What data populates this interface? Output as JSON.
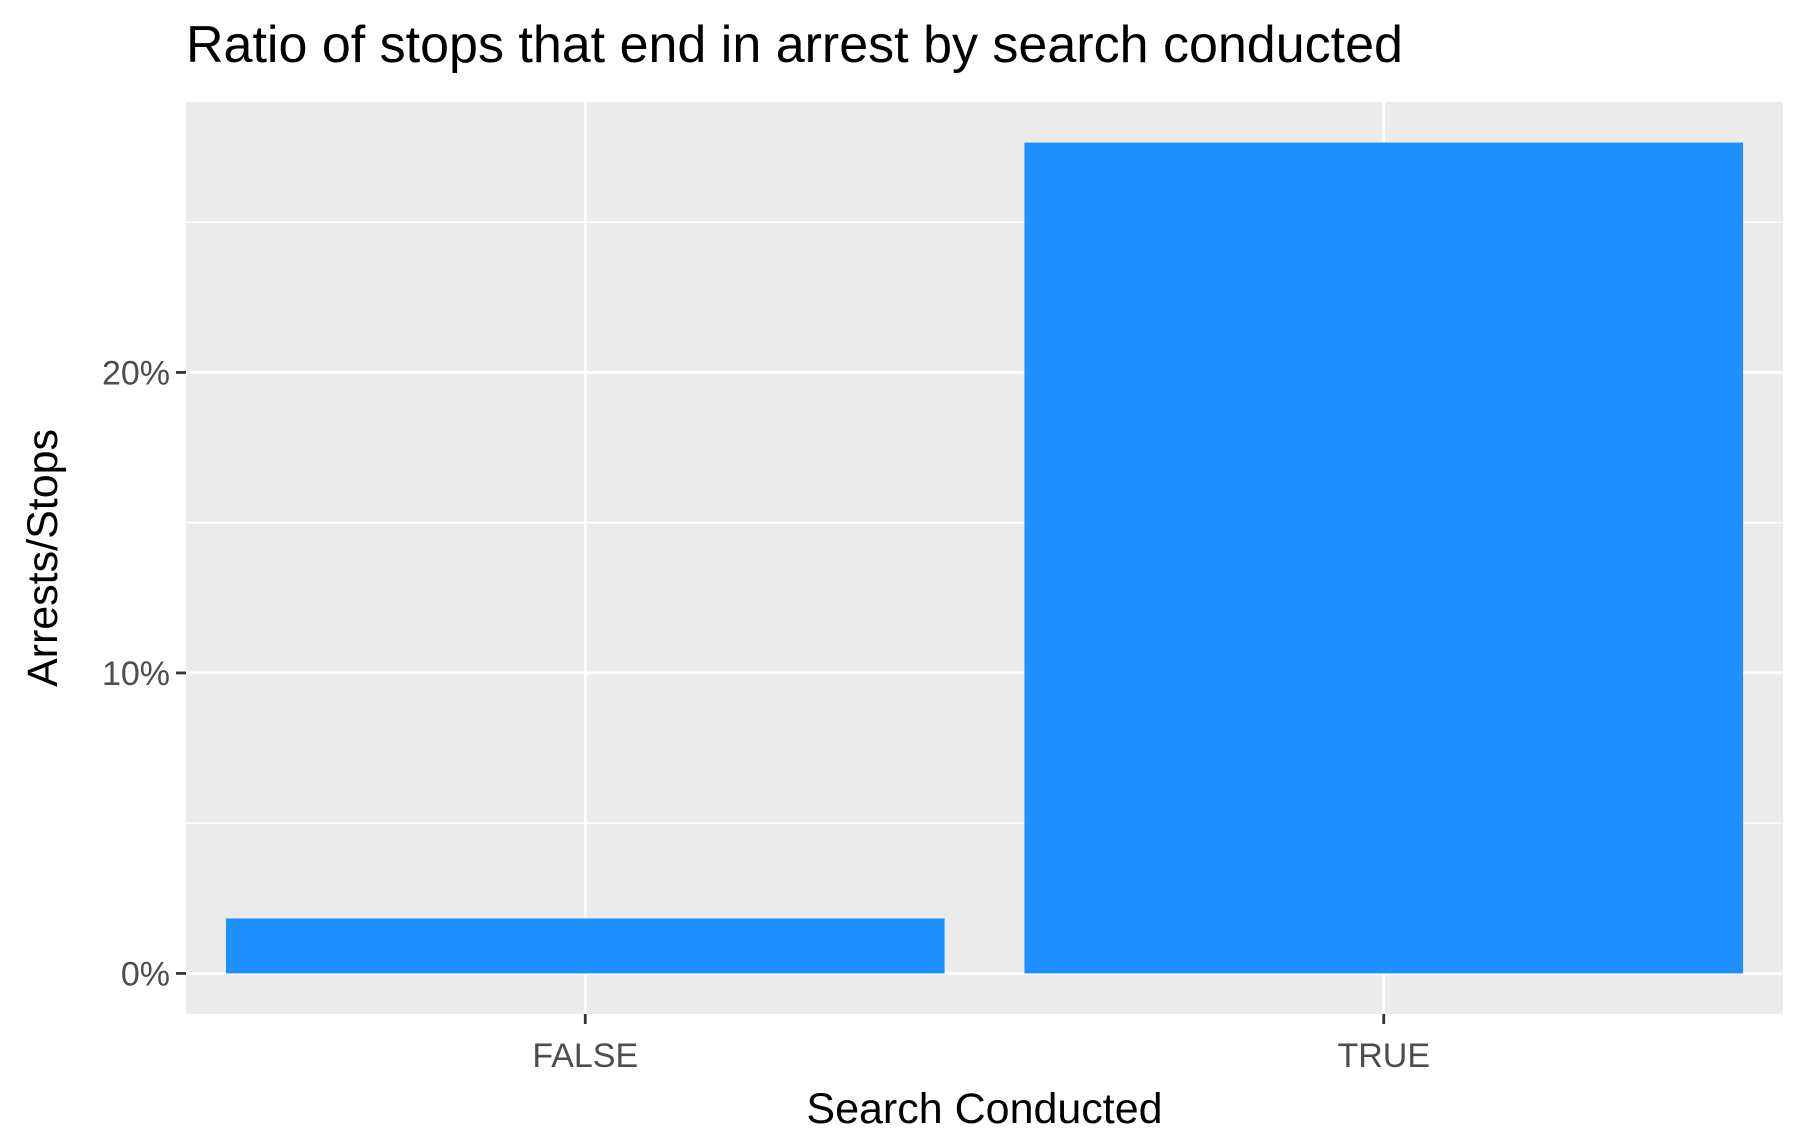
{
  "chart_data": {
    "type": "bar",
    "title": "Ratio of stops that end in arrest by search conducted",
    "xlabel": "Search Conducted",
    "ylabel": "Arrests/Stops",
    "categories": [
      "FALSE",
      "TRUE"
    ],
    "values": [
      0.0183,
      0.2765
    ],
    "ylim": [
      -0.0135,
      0.29
    ],
    "y_ticks": [
      0,
      0.1,
      0.2
    ],
    "y_tick_labels": [
      "0%",
      "10%",
      "20%"
    ],
    "y_minor_ticks": [
      0.05,
      0.15,
      0.25
    ],
    "grid": true,
    "legend": "none",
    "colors": {
      "bar": "#1E90FF",
      "panel": "#EBEBEB",
      "grid": "#FFFFFF"
    }
  }
}
